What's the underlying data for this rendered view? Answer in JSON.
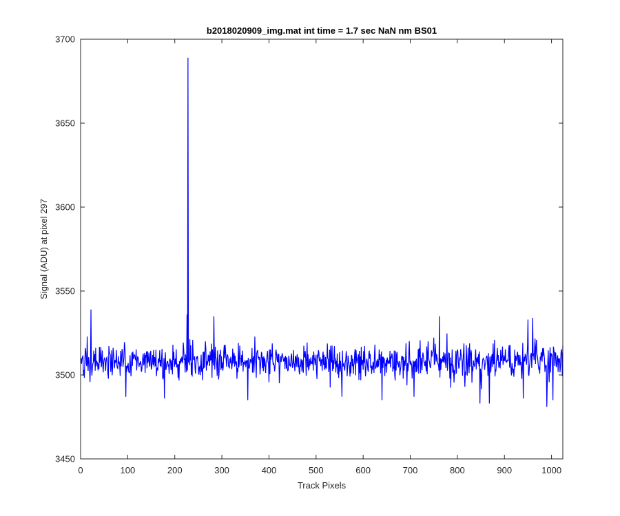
{
  "chart_data": {
    "type": "line",
    "title": "b2018020909_img.mat int time = 1.7 sec  NaN nm BS01",
    "xlabel": "Track Pixels",
    "ylabel": "Signal (ADU) at pixel 297",
    "xlim": [
      0,
      1024
    ],
    "ylim": [
      3450,
      3700
    ],
    "xticks": [
      0,
      100,
      200,
      300,
      400,
      500,
      600,
      700,
      800,
      900,
      1000
    ],
    "yticks": [
      3450,
      3500,
      3550,
      3600,
      3650,
      3700
    ],
    "grid": false,
    "legend": "none",
    "series": [
      {
        "color": "#0000ff",
        "baseline": 3508,
        "noise_amplitude": 8,
        "x_start": 1,
        "x_end": 1024,
        "spikes": [
          {
            "x": 228,
            "y": 3689
          },
          {
            "x": 226,
            "y": 3536
          },
          {
            "x": 22,
            "y": 3539
          },
          {
            "x": 283,
            "y": 3535
          },
          {
            "x": 762,
            "y": 3535
          },
          {
            "x": 950,
            "y": 3533
          },
          {
            "x": 960,
            "y": 3534
          },
          {
            "x": 355,
            "y": 3485
          },
          {
            "x": 640,
            "y": 3485
          },
          {
            "x": 848,
            "y": 3483
          },
          {
            "x": 868,
            "y": 3483
          },
          {
            "x": 990,
            "y": 3481
          },
          {
            "x": 1003,
            "y": 3485
          },
          {
            "x": 96,
            "y": 3487
          },
          {
            "x": 178,
            "y": 3486
          },
          {
            "x": 555,
            "y": 3487
          },
          {
            "x": 708,
            "y": 3487
          },
          {
            "x": 940,
            "y": 3486
          }
        ]
      }
    ]
  }
}
